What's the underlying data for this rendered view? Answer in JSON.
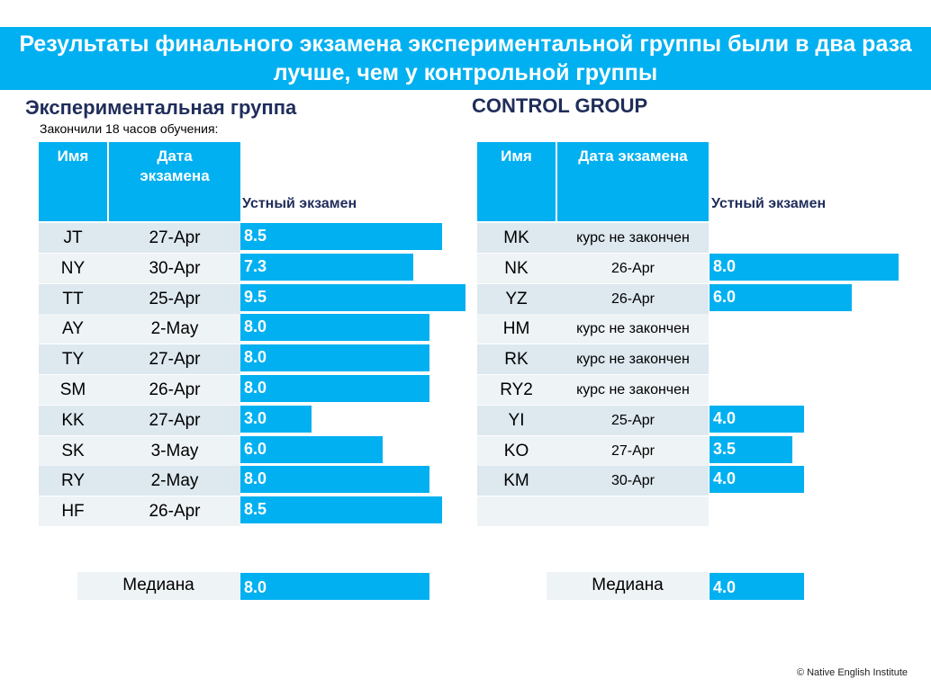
{
  "title": "Результаты финального экзамена экспериментальной группы были в два раза лучше, чем у контрольной группы",
  "copyright": "© Native English Institute",
  "chart_data": [
    {
      "type": "bar",
      "group_title": "Экспериментальная группа",
      "subtitle": "Закончили 18 часов обучения:",
      "columns": [
        "Имя",
        "Дата экзамена",
        "Устный экзамен"
      ],
      "rows": [
        {
          "name": "JT",
          "date": "27-Apr",
          "score": 8.5,
          "score_label": "8.5"
        },
        {
          "name": "NY",
          "date": "30-Apr",
          "score": 7.3,
          "score_label": "7.3"
        },
        {
          "name": "TT",
          "date": "25-Apr",
          "score": 9.5,
          "score_label": "9.5"
        },
        {
          "name": "AY",
          "date": "2-May",
          "score": 8.0,
          "score_label": "8.0"
        },
        {
          "name": "TY",
          "date": "27-Apr",
          "score": 8.0,
          "score_label": "8.0"
        },
        {
          "name": "SM",
          "date": "26-Apr",
          "score": 8.0,
          "score_label": "8.0"
        },
        {
          "name": "KK",
          "date": "27-Apr",
          "score": 3.0,
          "score_label": "3.0"
        },
        {
          "name": "SK",
          "date": "3-May",
          "score": 6.0,
          "score_label": "6.0"
        },
        {
          "name": "RY",
          "date": "2-May",
          "score": 8.0,
          "score_label": "8.0"
        },
        {
          "name": "HF",
          "date": "26-Apr",
          "score": 8.5,
          "score_label": "8.5"
        }
      ],
      "median_label": "Медиана",
      "median": 8.0,
      "median_text": "8.0",
      "xlim": [
        0,
        9.5
      ]
    },
    {
      "type": "bar",
      "group_title": "CONTROL GROUP",
      "subtitle": "",
      "columns": [
        "Имя",
        "Дата экзамена",
        "Устный экзамен"
      ],
      "rows": [
        {
          "name": "MK",
          "date": "курс не закончен",
          "score": null,
          "score_label": ""
        },
        {
          "name": "NK",
          "date": "26-Apr",
          "score": 8.0,
          "score_label": "8.0"
        },
        {
          "name": "YZ",
          "date": "26-Apr",
          "score": 6.0,
          "score_label": "6.0"
        },
        {
          "name": "HM",
          "date": "курс не закончен",
          "score": null,
          "score_label": ""
        },
        {
          "name": "RK",
          "date": "курс не закончен",
          "score": null,
          "score_label": ""
        },
        {
          "name": "RY2",
          "date": "курс не закончен",
          "score": null,
          "score_label": ""
        },
        {
          "name": "YI",
          "date": "25-Apr",
          "score": 4.0,
          "score_label": "4.0"
        },
        {
          "name": "KO",
          "date": "27-Apr",
          "score": 3.5,
          "score_label": "3.5"
        },
        {
          "name": "KM",
          "date": "30-Apr",
          "score": 4.0,
          "score_label": "4.0"
        },
        {
          "name": "",
          "date": "",
          "score": null,
          "score_label": ""
        }
      ],
      "median_label": "Медиана",
      "median": 4.0,
      "median_text": "4.0",
      "xlim": [
        0,
        8.0
      ]
    }
  ],
  "colors": {
    "accent": "#00b0f0",
    "row_dark": "#dde8ef",
    "row_light": "#eef3f6",
    "title_text": "#1f2d5a"
  }
}
